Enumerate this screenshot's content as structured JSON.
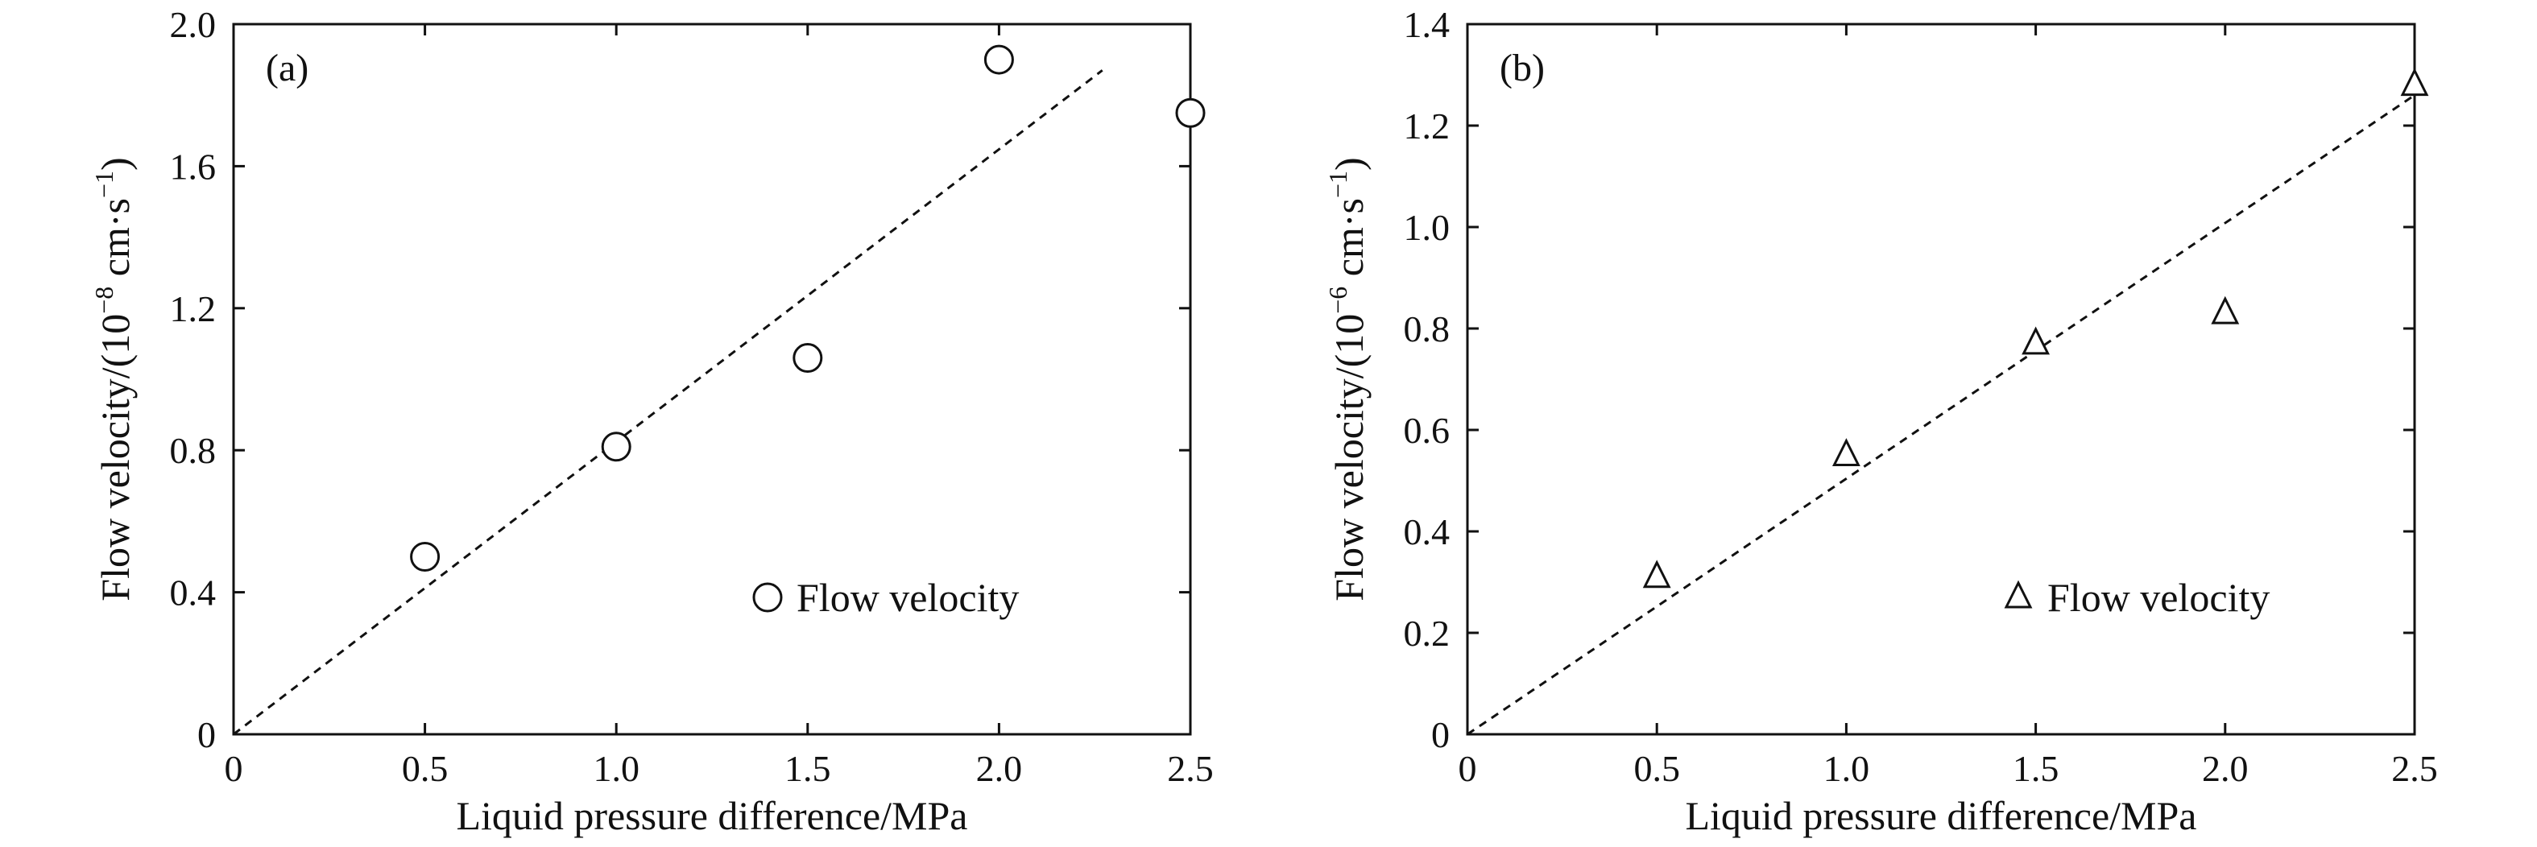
{
  "chart_data": [
    {
      "type": "scatter",
      "panel_label": "(a)",
      "xlabel": "Liquid pressure difference/MPa",
      "ylabel_prefix": "Flow velocity/(10",
      "ylabel_exp": "−8",
      "ylabel_mid": " cm·s",
      "ylabel_exp2": "−1",
      "ylabel_suffix": ")",
      "xlim": [
        0,
        2.5
      ],
      "ylim": [
        0,
        2.0
      ],
      "xticks": [
        0,
        0.5,
        1.0,
        1.5,
        2.0,
        2.5
      ],
      "xtick_labels": [
        "0",
        "0.5",
        "1.0",
        "1.5",
        "2.0",
        "2.5"
      ],
      "yticks": [
        0,
        0.4,
        0.8,
        1.2,
        1.6,
        2.0
      ],
      "ytick_labels": [
        "0",
        "0.4",
        "0.8",
        "1.2",
        "1.6",
        "2.0"
      ],
      "marker": "circle",
      "series": [
        {
          "name": "Flow velocity",
          "x": [
            0.5,
            1.0,
            1.5,
            2.0,
            2.5
          ],
          "y": [
            0.5,
            0.81,
            1.06,
            1.9,
            1.75
          ]
        }
      ],
      "fit_line": {
        "x": [
          0,
          2.27
        ],
        "y": [
          0,
          1.87
        ],
        "style": "dashed"
      },
      "legend_position": "bottom-right",
      "grid": false
    },
    {
      "type": "scatter",
      "panel_label": "(b)",
      "xlabel": "Liquid pressure difference/MPa",
      "ylabel_prefix": "Flow velocity/(10",
      "ylabel_exp": "−6",
      "ylabel_mid": " cm·s",
      "ylabel_exp2": "−1",
      "ylabel_suffix": ")",
      "xlim": [
        0,
        2.5
      ],
      "ylim": [
        0,
        1.4
      ],
      "xticks": [
        0,
        0.5,
        1.0,
        1.5,
        2.0,
        2.5
      ],
      "xtick_labels": [
        "0",
        "0.5",
        "1.0",
        "1.5",
        "2.0",
        "2.5"
      ],
      "yticks": [
        0,
        0.2,
        0.4,
        0.6,
        0.8,
        1.0,
        1.2,
        1.4
      ],
      "ytick_labels": [
        "0",
        "0.2",
        "0.4",
        "0.6",
        "0.8",
        "1.0",
        "1.2",
        "1.4"
      ],
      "marker": "triangle",
      "series": [
        {
          "name": "Flow velocity",
          "x": [
            0.5,
            1.0,
            1.5,
            2.0,
            2.5
          ],
          "y": [
            0.31,
            0.55,
            0.77,
            0.83,
            1.28
          ]
        }
      ],
      "fit_line": {
        "x": [
          0,
          2.5
        ],
        "y": [
          0,
          1.26
        ],
        "style": "dashed"
      },
      "legend_position": "bottom-right",
      "grid": false
    }
  ]
}
